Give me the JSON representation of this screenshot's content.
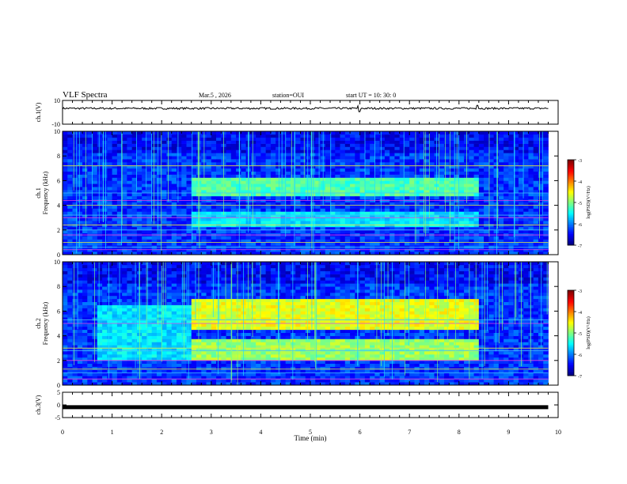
{
  "header": {
    "title": "VLF Spectra",
    "date": "Mar.5  , 2026",
    "station": "station=OUI",
    "start": "start  UT =   10: 30: 0"
  },
  "chart_data": [
    {
      "type": "line",
      "name": "ch1-waveform",
      "ylabel": "ch.1(V)",
      "ylim": [
        -10,
        10
      ],
      "yticks": [
        "10",
        "-10"
      ],
      "baseline": 3.3,
      "spikes": [
        {
          "x": 5.97,
          "y": 5.5
        },
        {
          "x": 5.99,
          "y": 0.5
        },
        {
          "x": 8.37,
          "y": 5.8
        }
      ]
    },
    {
      "type": "heatmap",
      "name": "ch1-spectrogram",
      "ylabel": "ch.1",
      "ylabel2": "Frequency  (kHz)",
      "xlim": [
        0,
        10
      ],
      "ylim": [
        0,
        10
      ],
      "yticks": [
        "0",
        "2",
        "4",
        "6",
        "8",
        "10"
      ],
      "zlim": [
        -7,
        -3
      ],
      "colorbar_label": "log(PSD)(V²/Hz)",
      "colorbar_ticks": [
        "-3",
        "-4",
        "-5",
        "-6",
        "-7"
      ],
      "data_end_min": 9.8,
      "bands": [
        {
          "x": [
            2.6,
            8.35
          ],
          "f": [
            4.7,
            6.2
          ],
          "level": -5.2
        },
        {
          "x": [
            2.6,
            8.35
          ],
          "f": [
            2.2,
            3.3
          ],
          "level": -5.6
        }
      ],
      "lines_khz": [
        0.4,
        0.6,
        1.0,
        1.6,
        2.0,
        2.4,
        3.0,
        3.2,
        4.0,
        4.4,
        5.0,
        7.2
      ]
    },
    {
      "type": "heatmap",
      "name": "ch2-spectrogram",
      "ylabel": "ch.2",
      "ylabel2": "Frequency  (kHz)",
      "xlim": [
        0,
        10
      ],
      "ylim": [
        0,
        10
      ],
      "yticks": [
        "0",
        "2",
        "4",
        "6",
        "8",
        "10"
      ],
      "zlim": [
        -7,
        -3
      ],
      "colorbar_label": "log(PSD)(V²/Hz)",
      "colorbar_ticks": [
        "-3",
        "-4",
        "-5",
        "-6",
        "-7"
      ],
      "data_end_min": 9.8,
      "bands": [
        {
          "x": [
            2.6,
            8.35
          ],
          "f": [
            4.4,
            6.8
          ],
          "level": -4.6
        },
        {
          "x": [
            2.6,
            8.35
          ],
          "f": [
            2.0,
            3.6
          ],
          "level": -4.9
        },
        {
          "x": [
            0.65,
            2.6
          ],
          "f": [
            1.8,
            6.5
          ],
          "level": -5.6
        }
      ],
      "lines_khz": [
        0.5,
        1.0,
        1.3,
        2.0,
        2.8,
        3.0,
        5.0,
        5.3
      ]
    },
    {
      "type": "line",
      "name": "ch3-waveform",
      "ylabel": "ch.3(V)",
      "ylim": [
        -5,
        5
      ],
      "yticks": [
        "5",
        "0",
        "-5"
      ],
      "baseline": -0.9
    }
  ],
  "xaxis": {
    "label": "Time  (min)",
    "ticks": [
      "0",
      "1",
      "2",
      "3",
      "4",
      "5",
      "6",
      "7",
      "8",
      "9",
      "10"
    ]
  }
}
